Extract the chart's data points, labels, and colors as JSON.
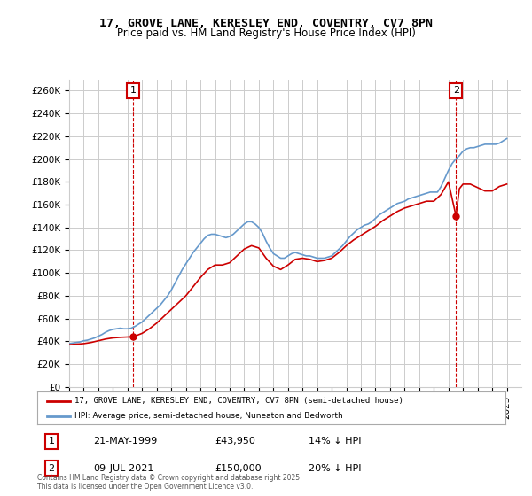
{
  "title": "17, GROVE LANE, KERESLEY END, COVENTRY, CV7 8PN",
  "subtitle": "Price paid vs. HM Land Registry's House Price Index (HPI)",
  "ylabel_ticks": [
    "£0",
    "£20K",
    "£40K",
    "£60K",
    "£80K",
    "£100K",
    "£120K",
    "£140K",
    "£160K",
    "£180K",
    "£200K",
    "£220K",
    "£240K",
    "£260K"
  ],
  "ytick_values": [
    0,
    20000,
    40000,
    60000,
    80000,
    100000,
    120000,
    140000,
    160000,
    180000,
    200000,
    220000,
    240000,
    260000
  ],
  "ylim": [
    0,
    270000
  ],
  "xlim_start": 1995.0,
  "xlim_end": 2026.0,
  "sale1_date": 1999.38,
  "sale1_price": 43950,
  "sale1_label": "1",
  "sale1_hpi_pct": "14% ↓ HPI",
  "sale1_date_str": "21-MAY-1999",
  "sale1_price_str": "£43,950",
  "sale2_date": 2021.52,
  "sale2_price": 150000,
  "sale2_label": "2",
  "sale2_hpi_pct": "20% ↓ HPI",
  "sale2_date_str": "09-JUL-2021",
  "sale2_price_str": "£150,000",
  "line_color_red": "#cc0000",
  "line_color_blue": "#6699cc",
  "vline_color": "#cc0000",
  "grid_color": "#cccccc",
  "background_color": "#ffffff",
  "legend_label_red": "17, GROVE LANE, KERESLEY END, COVENTRY, CV7 8PN (semi-detached house)",
  "legend_label_blue": "HPI: Average price, semi-detached house, Nuneaton and Bedworth",
  "footnote": "Contains HM Land Registry data © Crown copyright and database right 2025.\nThis data is licensed under the Open Government Licence v3.0.",
  "hpi_x": [
    1995.0,
    1995.25,
    1995.5,
    1995.75,
    1996.0,
    1996.25,
    1996.5,
    1996.75,
    1997.0,
    1997.25,
    1997.5,
    1997.75,
    1998.0,
    1998.25,
    1998.5,
    1998.75,
    1999.0,
    1999.25,
    1999.5,
    1999.75,
    2000.0,
    2000.25,
    2000.5,
    2000.75,
    2001.0,
    2001.25,
    2001.5,
    2001.75,
    2002.0,
    2002.25,
    2002.5,
    2002.75,
    2003.0,
    2003.25,
    2003.5,
    2003.75,
    2004.0,
    2004.25,
    2004.5,
    2004.75,
    2005.0,
    2005.25,
    2005.5,
    2005.75,
    2006.0,
    2006.25,
    2006.5,
    2006.75,
    2007.0,
    2007.25,
    2007.5,
    2007.75,
    2008.0,
    2008.25,
    2008.5,
    2008.75,
    2009.0,
    2009.25,
    2009.5,
    2009.75,
    2010.0,
    2010.25,
    2010.5,
    2010.75,
    2011.0,
    2011.25,
    2011.5,
    2011.75,
    2012.0,
    2012.25,
    2012.5,
    2012.75,
    2013.0,
    2013.25,
    2013.5,
    2013.75,
    2014.0,
    2014.25,
    2014.5,
    2014.75,
    2015.0,
    2015.25,
    2015.5,
    2015.75,
    2016.0,
    2016.25,
    2016.5,
    2016.75,
    2017.0,
    2017.25,
    2017.5,
    2017.75,
    2018.0,
    2018.25,
    2018.5,
    2018.75,
    2019.0,
    2019.25,
    2019.5,
    2019.75,
    2020.0,
    2020.25,
    2020.5,
    2020.75,
    2021.0,
    2021.25,
    2021.5,
    2021.75,
    2022.0,
    2022.25,
    2022.5,
    2022.75,
    2023.0,
    2023.25,
    2023.5,
    2023.75,
    2024.0,
    2024.25,
    2024.5,
    2024.75,
    2025.0
  ],
  "hpi_y": [
    38000,
    38500,
    39000,
    39500,
    40500,
    41000,
    42000,
    43000,
    44500,
    46000,
    48000,
    49500,
    50500,
    51000,
    51500,
    51000,
    51000,
    51500,
    53000,
    55000,
    57000,
    60000,
    63000,
    66000,
    69000,
    72000,
    76000,
    80000,
    85000,
    91000,
    97000,
    103000,
    108000,
    113000,
    118000,
    122000,
    126000,
    130000,
    133000,
    134000,
    134000,
    133000,
    132000,
    131000,
    132000,
    134000,
    137000,
    140000,
    143000,
    145000,
    145000,
    143000,
    140000,
    135000,
    128000,
    122000,
    117000,
    115000,
    113000,
    113000,
    115000,
    117000,
    118000,
    117000,
    116000,
    115000,
    115000,
    114000,
    113000,
    113000,
    113000,
    114000,
    115000,
    118000,
    121000,
    124000,
    128000,
    132000,
    135000,
    138000,
    140000,
    142000,
    143000,
    145000,
    148000,
    151000,
    153000,
    155000,
    157000,
    159000,
    161000,
    162000,
    163000,
    165000,
    166000,
    167000,
    168000,
    169000,
    170000,
    171000,
    171000,
    171000,
    176000,
    183000,
    190000,
    196000,
    200000,
    203000,
    207000,
    209000,
    210000,
    210000,
    211000,
    212000,
    213000,
    213000,
    213000,
    213000,
    214000,
    216000,
    218000
  ],
  "price_x": [
    1995.0,
    1995.5,
    1996.0,
    1996.5,
    1997.0,
    1997.5,
    1998.0,
    1998.5,
    1999.0,
    1999.38,
    1999.5,
    2000.0,
    2000.5,
    2001.0,
    2001.5,
    2002.0,
    2002.5,
    2003.0,
    2003.5,
    2004.0,
    2004.5,
    2005.0,
    2005.5,
    2006.0,
    2006.5,
    2007.0,
    2007.5,
    2008.0,
    2008.5,
    2009.0,
    2009.5,
    2010.0,
    2010.5,
    2011.0,
    2011.5,
    2012.0,
    2012.5,
    2013.0,
    2013.5,
    2014.0,
    2014.5,
    2015.0,
    2015.5,
    2016.0,
    2016.5,
    2017.0,
    2017.5,
    2018.0,
    2018.5,
    2019.0,
    2019.5,
    2020.0,
    2020.5,
    2021.0,
    2021.52,
    2021.75,
    2022.0,
    2022.5,
    2023.0,
    2023.5,
    2024.0,
    2024.5,
    2025.0
  ],
  "price_y": [
    37000,
    37500,
    38000,
    39000,
    40500,
    42000,
    43000,
    43500,
    43800,
    43950,
    44500,
    47000,
    51000,
    56000,
    62000,
    68000,
    74000,
    80000,
    88000,
    96000,
    103000,
    107000,
    107000,
    109000,
    115000,
    121000,
    124000,
    122000,
    113000,
    106000,
    103000,
    107000,
    112000,
    113000,
    112000,
    110000,
    111000,
    113000,
    118000,
    124000,
    129000,
    133000,
    137000,
    141000,
    146000,
    150000,
    154000,
    157000,
    159000,
    161000,
    163000,
    163000,
    169000,
    180000,
    150000,
    174000,
    178000,
    178000,
    175000,
    172000,
    172000,
    176000,
    178000
  ]
}
